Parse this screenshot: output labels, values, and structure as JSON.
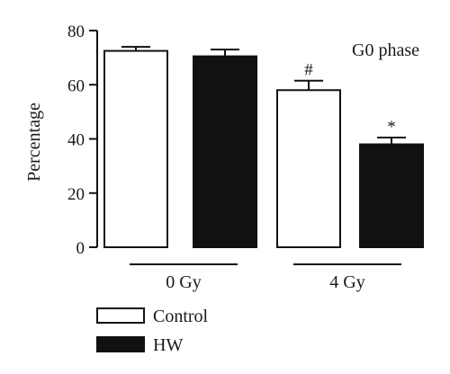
{
  "chart_data": {
    "type": "bar",
    "title": "G0 phase",
    "xlabel": "",
    "ylabel": "Percentage",
    "ylim": [
      0,
      80
    ],
    "yticks": [
      0,
      20,
      40,
      60,
      80
    ],
    "groups": [
      "0 Gy",
      "4 Gy"
    ],
    "series": [
      {
        "name": "Control",
        "color": "#ffffff",
        "values": [
          72.5,
          58
        ],
        "errors": [
          1.5,
          3.5
        ],
        "annotations": [
          "",
          "#"
        ]
      },
      {
        "name": "HW",
        "color": "#111111",
        "values": [
          70.5,
          38
        ],
        "errors": [
          2.5,
          2.5
        ],
        "annotations": [
          "",
          "*"
        ]
      }
    ],
    "legend_position": "bottom-left",
    "grid": false
  }
}
